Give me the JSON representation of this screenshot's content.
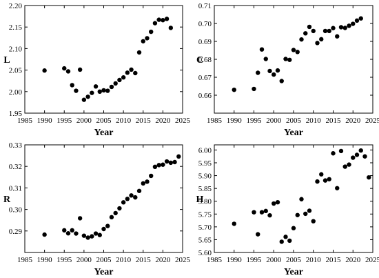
{
  "chart_data": [
    {
      "id": "L",
      "type": "scatter",
      "xlabel": "Year",
      "ylabel": "L",
      "xlim": [
        1985,
        2025
      ],
      "ylim": [
        1.95,
        2.2
      ],
      "xticks": [
        1985,
        1990,
        1995,
        2000,
        2005,
        2010,
        2015,
        2020,
        2025
      ],
      "yticks": [
        1.95,
        2.0,
        2.05,
        2.1,
        2.15,
        2.2
      ],
      "ytick_labels": [
        "1.95",
        "2.00",
        "2.05",
        "2.10",
        "2.15",
        "2.20"
      ],
      "grid": false,
      "x": [
        1990,
        1995,
        1996,
        1997,
        1998,
        1999,
        2000,
        2001,
        2002,
        2003,
        2004,
        2005,
        2006,
        2007,
        2008,
        2009,
        2010,
        2011,
        2012,
        2013,
        2014,
        2015,
        2016,
        2017,
        2018,
        2019,
        2020,
        2021,
        2022
      ],
      "y": [
        2.049,
        2.054,
        2.047,
        2.015,
        2.002,
        2.051,
        1.981,
        1.988,
        1.997,
        2.012,
        2.0,
        2.003,
        2.002,
        2.011,
        2.019,
        2.027,
        2.033,
        2.044,
        2.051,
        2.043,
        2.091,
        2.117,
        2.124,
        2.139,
        2.159,
        2.167,
        2.166,
        2.169,
        2.148
      ]
    },
    {
      "id": "C",
      "type": "scatter",
      "xlabel": "Year",
      "ylabel": "C",
      "xlim": [
        1985,
        2025
      ],
      "ylim": [
        0.65,
        0.71
      ],
      "xticks": [
        1985,
        1990,
        1995,
        2000,
        2005,
        2010,
        2015,
        2020,
        2025
      ],
      "yticks": [
        0.66,
        0.67,
        0.68,
        0.69,
        0.7,
        0.71
      ],
      "ytick_labels": [
        "0.66",
        "0.67",
        "0.68",
        "0.69",
        "0.70",
        "0.71"
      ],
      "grid": false,
      "x": [
        1990,
        1995,
        1996,
        1997,
        1998,
        1999,
        2000,
        2001,
        2002,
        2003,
        2004,
        2005,
        2006,
        2007,
        2008,
        2009,
        2010,
        2011,
        2012,
        2013,
        2014,
        2015,
        2016,
        2017,
        2018,
        2019,
        2020,
        2021,
        2022
      ],
      "y": [
        0.663,
        0.6635,
        0.6725,
        0.6855,
        0.6802,
        0.6735,
        0.6715,
        0.6738,
        0.6679,
        0.6802,
        0.6797,
        0.6852,
        0.6841,
        0.6911,
        0.6945,
        0.6981,
        0.6958,
        0.6891,
        0.6912,
        0.6958,
        0.6958,
        0.6974,
        0.6928,
        0.6979,
        0.6975,
        0.6987,
        0.6998,
        0.7016,
        0.7028
      ]
    },
    {
      "id": "R",
      "type": "scatter",
      "xlabel": "Year",
      "ylabel": "R",
      "xlim": [
        1985,
        2025
      ],
      "ylim": [
        0.28,
        0.33
      ],
      "xticks": [
        1985,
        1990,
        1995,
        2000,
        2005,
        2010,
        2015,
        2020,
        2025
      ],
      "yticks": [
        0.29,
        0.3,
        0.31,
        0.32,
        0.33
      ],
      "ytick_labels": [
        "0.29",
        "0.30",
        "0.31",
        "0.32",
        "0.33"
      ],
      "grid": false,
      "x": [
        1990,
        1995,
        1996,
        1997,
        1998,
        1999,
        2000,
        2001,
        2002,
        2003,
        2004,
        2005,
        2006,
        2007,
        2008,
        2009,
        2010,
        2011,
        2012,
        2013,
        2014,
        2015,
        2016,
        2017,
        2018,
        2019,
        2020,
        2021,
        2022,
        2023,
        2024
      ],
      "y": [
        0.2883,
        0.2903,
        0.2889,
        0.2903,
        0.2888,
        0.2959,
        0.2878,
        0.2869,
        0.2875,
        0.2888,
        0.2881,
        0.2909,
        0.2923,
        0.2964,
        0.2983,
        0.3005,
        0.3033,
        0.3049,
        0.3065,
        0.3056,
        0.3086,
        0.3121,
        0.3129,
        0.3156,
        0.3198,
        0.3206,
        0.3208,
        0.3223,
        0.3217,
        0.322,
        0.3246
      ]
    },
    {
      "id": "H",
      "type": "scatter",
      "xlabel": "Year",
      "ylabel": "H",
      "xlim": [
        1985,
        2025
      ],
      "ylim": [
        5.6,
        6.02
      ],
      "xticks": [
        1985,
        1990,
        1995,
        2000,
        2005,
        2010,
        2015,
        2020,
        2025
      ],
      "yticks": [
        5.6,
        5.65,
        5.7,
        5.75,
        5.8,
        5.85,
        5.9,
        5.95,
        6.0
      ],
      "ytick_labels": [
        "5.60",
        "5.65",
        "5.70",
        "5.75",
        "5.80",
        "5.85",
        "5.90",
        "5.95",
        "6.00"
      ],
      "grid": false,
      "x": [
        1990,
        1995,
        1996,
        1997,
        1998,
        1999,
        2000,
        2001,
        2002,
        2003,
        2004,
        2005,
        2006,
        2007,
        2008,
        2009,
        2010,
        2011,
        2012,
        2013,
        2014,
        2015,
        2016,
        2017,
        2018,
        2019,
        2020,
        2021,
        2022,
        2023,
        2024
      ],
      "y": [
        5.712,
        5.757,
        5.671,
        5.757,
        5.762,
        5.745,
        5.791,
        5.796,
        5.642,
        5.661,
        5.646,
        5.695,
        5.746,
        5.808,
        5.751,
        5.763,
        5.722,
        5.877,
        5.905,
        5.881,
        5.886,
        5.987,
        5.851,
        5.996,
        5.935,
        5.943,
        5.97,
        5.981,
        5.998,
        5.975,
        5.893
      ]
    }
  ]
}
